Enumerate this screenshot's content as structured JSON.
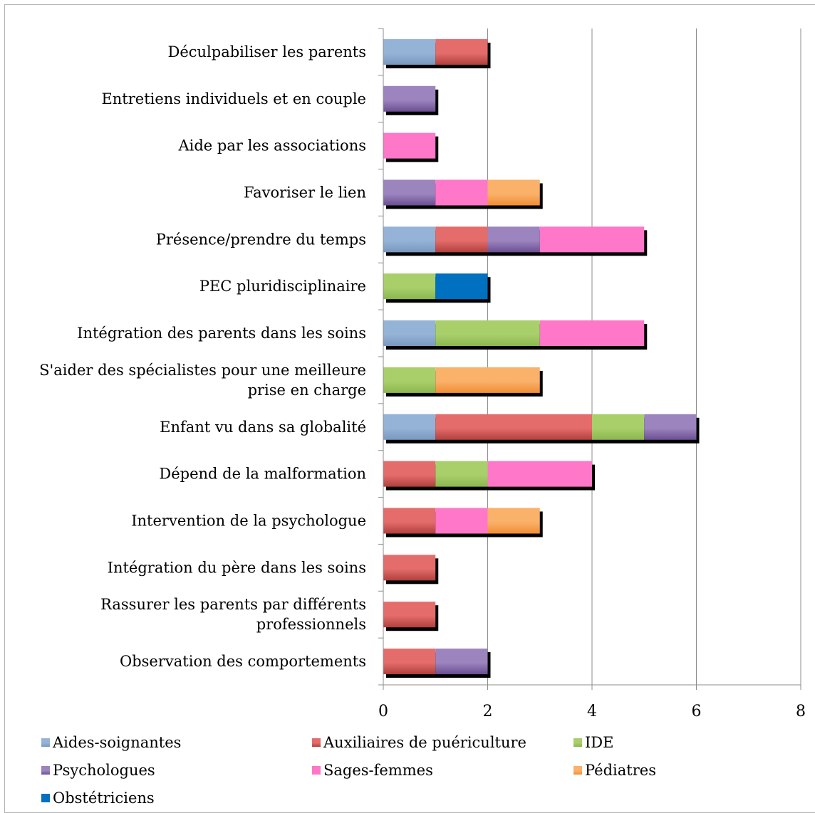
{
  "chart_data": {
    "type": "bar",
    "orientation": "horizontal",
    "stacked": true,
    "title": "",
    "xlabel": "",
    "ylabel": "",
    "xlim": [
      0,
      8
    ],
    "x_ticks": [
      0,
      2,
      4,
      6,
      8
    ],
    "grid": "vertical major gridlines",
    "legend_position": "bottom",
    "categories": [
      [
        "Déculpabiliser les parents"
      ],
      [
        "Entretiens individuels et en couple"
      ],
      [
        "Aide par les associations"
      ],
      [
        "Favoriser le lien"
      ],
      [
        "Présence/prendre du temps"
      ],
      [
        "PEC pluridisciplinaire"
      ],
      [
        "Intégration des parents dans les soins"
      ],
      [
        "S'aider des spécialistes pour une meilleure",
        "prise en charge"
      ],
      [
        "Enfant vu dans sa globalité"
      ],
      [
        "Dépend de la malformation"
      ],
      [
        "Intervention de la psychologue"
      ],
      [
        "Intégration du père dans les soins"
      ],
      [
        "Rassurer les parents par différents",
        "professionnels"
      ],
      [
        "Observation des comportements"
      ]
    ],
    "series": [
      {
        "name": "Aides-soignantes",
        "color": "#95b3d7",
        "dark": "#7a98bf",
        "values": [
          1,
          0,
          0,
          0,
          1,
          0,
          1,
          0,
          1,
          0,
          0,
          0,
          0,
          0
        ]
      },
      {
        "name": "Auxiliaires de puériculture",
        "color": "#e46c6a",
        "dark": "#b0403d",
        "values": [
          1,
          0,
          0,
          0,
          1,
          0,
          0,
          0,
          3,
          1,
          1,
          1,
          1,
          1
        ]
      },
      {
        "name": "IDE",
        "color": "#a8cf6a",
        "dark": "#8cb650",
        "values": [
          0,
          0,
          0,
          0,
          0,
          1,
          2,
          1,
          1,
          1,
          0,
          0,
          0,
          0
        ]
      },
      {
        "name": "Psychologues",
        "color": "#9c84be",
        "dark": "#6a4f91",
        "values": [
          0,
          1,
          0,
          1,
          1,
          0,
          0,
          0,
          1,
          0,
          0,
          0,
          0,
          1
        ]
      },
      {
        "name": "Sages-femmes",
        "color": "#ff77c8",
        "dark": "#ff77c8",
        "values": [
          0,
          0,
          1,
          1,
          2,
          0,
          2,
          0,
          0,
          2,
          1,
          0,
          0,
          0
        ]
      },
      {
        "name": "Pédiatres",
        "color": "#fab16a",
        "dark": "#f18d35",
        "values": [
          0,
          0,
          0,
          1,
          0,
          0,
          0,
          2,
          0,
          0,
          1,
          0,
          0,
          0
        ]
      },
      {
        "name": "Obstétriciens",
        "color": "#0070c0",
        "dark": "#0070c0",
        "values": [
          0,
          0,
          0,
          0,
          0,
          1,
          0,
          0,
          0,
          0,
          0,
          0,
          0,
          0
        ]
      }
    ]
  }
}
